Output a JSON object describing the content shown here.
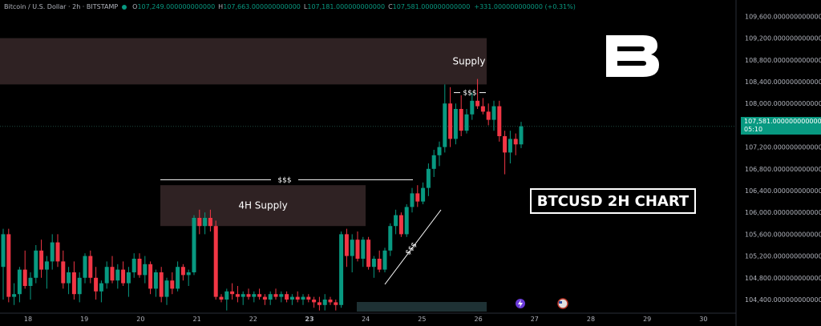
{
  "header": {
    "symbol": "Bitcoin / U.S. Dollar · 2h · BITSTAMP",
    "o_label": "O",
    "o_value": "107,249.000000000000",
    "h_label": "H",
    "h_value": "107,663.000000000000",
    "l_label": "L",
    "l_value": "107,181.000000000000",
    "c_label": "C",
    "c_value": "107,581.000000000000",
    "change": "+331.000000000000 (+0.31%)"
  },
  "price_tag": {
    "price": "107,581.000000000000",
    "countdown": "05:10"
  },
  "title_box": "BTCUSD 2H CHART",
  "colors": {
    "up": "#089981",
    "down": "#f23645",
    "supply_zone": "#2f2223",
    "bg": "#000000",
    "axis_text": "#b2b5be"
  },
  "chart_data": {
    "type": "candlestick",
    "timeframe": "2h",
    "x_ticks": [
      "18",
      "19",
      "20",
      "21",
      "22",
      "23",
      "24",
      "25",
      "26",
      "27",
      "28",
      "29",
      "30"
    ],
    "y_ticks": [
      "104,400.000000000000",
      "104,800.000000000000",
      "105,200.000000000000",
      "105,600.000000000000",
      "106,000.000000000000",
      "106,400.000000000000",
      "106,800.000000000000",
      "107,200.000000000000",
      "107,600.000000000000",
      "108,000.000000000000",
      "108,400.000000000000",
      "108,800.000000000000",
      "109,200.000000000000",
      "109,600.000000000000"
    ],
    "ylim": [
      104150,
      109900
    ],
    "current_price": 107581,
    "zones": [
      {
        "label": "Supply",
        "low": 108350,
        "high": 109200
      },
      {
        "label": "4H Supply",
        "low": 105750,
        "high": 106500
      }
    ],
    "annotations": [
      {
        "label": "$$$",
        "kind": "liquidity_line",
        "price": 106600
      },
      {
        "label": "$$$",
        "kind": "liquidity_line",
        "price": 108200
      },
      {
        "label": "$$$",
        "kind": "trendline_liquidity"
      }
    ],
    "candles": [
      {
        "o": 105000,
        "h": 105700,
        "l": 104400,
        "c": 105600
      },
      {
        "o": 105600,
        "h": 105700,
        "l": 104350,
        "c": 104450
      },
      {
        "o": 104450,
        "h": 104700,
        "l": 104300,
        "c": 104500
      },
      {
        "o": 104500,
        "h": 105000,
        "l": 104350,
        "c": 104950
      },
      {
        "o": 104950,
        "h": 105300,
        "l": 104600,
        "c": 104650
      },
      {
        "o": 104650,
        "h": 104900,
        "l": 104400,
        "c": 104800
      },
      {
        "o": 104800,
        "h": 105400,
        "l": 104700,
        "c": 105300
      },
      {
        "o": 105300,
        "h": 105500,
        "l": 104800,
        "c": 104950
      },
      {
        "o": 104950,
        "h": 105200,
        "l": 104600,
        "c": 105100
      },
      {
        "o": 105100,
        "h": 105600,
        "l": 104950,
        "c": 105450
      },
      {
        "o": 105450,
        "h": 105600,
        "l": 105000,
        "c": 105100
      },
      {
        "o": 105100,
        "h": 105300,
        "l": 104600,
        "c": 104700
      },
      {
        "o": 104700,
        "h": 105000,
        "l": 104500,
        "c": 104900
      },
      {
        "o": 104900,
        "h": 105100,
        "l": 104400,
        "c": 104500
      },
      {
        "o": 104500,
        "h": 104900,
        "l": 104350,
        "c": 104800
      },
      {
        "o": 104800,
        "h": 105250,
        "l": 104700,
        "c": 105200
      },
      {
        "o": 105200,
        "h": 105300,
        "l": 104700,
        "c": 104800
      },
      {
        "o": 104800,
        "h": 105000,
        "l": 104400,
        "c": 104550
      },
      {
        "o": 104550,
        "h": 104750,
        "l": 104350,
        "c": 104700
      },
      {
        "o": 104700,
        "h": 105100,
        "l": 104600,
        "c": 105000
      },
      {
        "o": 105000,
        "h": 105200,
        "l": 104700,
        "c": 104750
      },
      {
        "o": 104750,
        "h": 105050,
        "l": 104600,
        "c": 104950
      },
      {
        "o": 104950,
        "h": 105100,
        "l": 104650,
        "c": 104700
      },
      {
        "o": 104700,
        "h": 105000,
        "l": 104450,
        "c": 104900
      },
      {
        "o": 104900,
        "h": 105250,
        "l": 104800,
        "c": 105150
      },
      {
        "o": 105150,
        "h": 105250,
        "l": 104800,
        "c": 104850
      },
      {
        "o": 104850,
        "h": 105200,
        "l": 104700,
        "c": 105050
      },
      {
        "o": 105050,
        "h": 105100,
        "l": 104500,
        "c": 104600
      },
      {
        "o": 104600,
        "h": 104950,
        "l": 104450,
        "c": 104900
      },
      {
        "o": 104900,
        "h": 105000,
        "l": 104350,
        "c": 104450
      },
      {
        "o": 104450,
        "h": 104800,
        "l": 104300,
        "c": 104750
      },
      {
        "o": 104750,
        "h": 104900,
        "l": 104500,
        "c": 104600
      },
      {
        "o": 104600,
        "h": 105100,
        "l": 104550,
        "c": 105000
      },
      {
        "o": 105000,
        "h": 105050,
        "l": 104750,
        "c": 104850
      },
      {
        "o": 104850,
        "h": 104950,
        "l": 104650,
        "c": 104900
      },
      {
        "o": 104900,
        "h": 105950,
        "l": 104850,
        "c": 105900
      },
      {
        "o": 105900,
        "h": 106050,
        "l": 105600,
        "c": 105750
      },
      {
        "o": 105750,
        "h": 106000,
        "l": 105600,
        "c": 105900
      },
      {
        "o": 105900,
        "h": 106050,
        "l": 105650,
        "c": 105750
      },
      {
        "o": 105750,
        "h": 105850,
        "l": 104400,
        "c": 104450
      },
      {
        "o": 104450,
        "h": 104500,
        "l": 104350,
        "c": 104400
      },
      {
        "o": 104400,
        "h": 104600,
        "l": 104200,
        "c": 104550
      },
      {
        "o": 104550,
        "h": 104700,
        "l": 104400,
        "c": 104500
      },
      {
        "o": 104500,
        "h": 104650,
        "l": 104350,
        "c": 104450
      },
      {
        "o": 104450,
        "h": 104550,
        "l": 104300,
        "c": 104500
      },
      {
        "o": 104500,
        "h": 104600,
        "l": 104400,
        "c": 104450
      },
      {
        "o": 104450,
        "h": 104550,
        "l": 104350,
        "c": 104500
      },
      {
        "o": 104500,
        "h": 104600,
        "l": 104400,
        "c": 104450
      },
      {
        "o": 104450,
        "h": 104500,
        "l": 104300,
        "c": 104400
      },
      {
        "o": 104400,
        "h": 104550,
        "l": 104300,
        "c": 104500
      },
      {
        "o": 104500,
        "h": 104600,
        "l": 104400,
        "c": 104450
      },
      {
        "o": 104450,
        "h": 104550,
        "l": 104350,
        "c": 104500
      },
      {
        "o": 104500,
        "h": 104550,
        "l": 104350,
        "c": 104400
      },
      {
        "o": 104400,
        "h": 104500,
        "l": 104300,
        "c": 104450
      },
      {
        "o": 104450,
        "h": 104550,
        "l": 104350,
        "c": 104400
      },
      {
        "o": 104400,
        "h": 104500,
        "l": 104300,
        "c": 104450
      },
      {
        "o": 104450,
        "h": 104500,
        "l": 104350,
        "c": 104400
      },
      {
        "o": 104400,
        "h": 104450,
        "l": 104250,
        "c": 104350
      },
      {
        "o": 104350,
        "h": 104450,
        "l": 104200,
        "c": 104300
      },
      {
        "o": 104300,
        "h": 104500,
        "l": 104200,
        "c": 104400
      },
      {
        "o": 104400,
        "h": 104450,
        "l": 104300,
        "c": 104350
      },
      {
        "o": 104350,
        "h": 104400,
        "l": 104200,
        "c": 104300
      },
      {
        "o": 104300,
        "h": 105650,
        "l": 104250,
        "c": 105600
      },
      {
        "o": 105600,
        "h": 105700,
        "l": 105000,
        "c": 105200
      },
      {
        "o": 105200,
        "h": 105600,
        "l": 104900,
        "c": 105500
      },
      {
        "o": 105500,
        "h": 105650,
        "l": 105100,
        "c": 105150
      },
      {
        "o": 105150,
        "h": 105550,
        "l": 105000,
        "c": 105500
      },
      {
        "o": 105500,
        "h": 105550,
        "l": 104950,
        "c": 105000
      },
      {
        "o": 105000,
        "h": 105200,
        "l": 104800,
        "c": 105150
      },
      {
        "o": 105150,
        "h": 105300,
        "l": 104900,
        "c": 104950
      },
      {
        "o": 104950,
        "h": 105350,
        "l": 104900,
        "c": 105300
      },
      {
        "o": 105300,
        "h": 105800,
        "l": 105200,
        "c": 105750
      },
      {
        "o": 105750,
        "h": 106050,
        "l": 105600,
        "c": 105950
      },
      {
        "o": 105950,
        "h": 106000,
        "l": 105550,
        "c": 105600
      },
      {
        "o": 105600,
        "h": 106150,
        "l": 105550,
        "c": 106100
      },
      {
        "o": 106100,
        "h": 106450,
        "l": 106000,
        "c": 106350
      },
      {
        "o": 106350,
        "h": 106500,
        "l": 106100,
        "c": 106200
      },
      {
        "o": 106200,
        "h": 106550,
        "l": 106150,
        "c": 106450
      },
      {
        "o": 106450,
        "h": 106900,
        "l": 106300,
        "c": 106800
      },
      {
        "o": 106800,
        "h": 107150,
        "l": 106650,
        "c": 107050
      },
      {
        "o": 107050,
        "h": 107300,
        "l": 106850,
        "c": 107200
      },
      {
        "o": 107200,
        "h": 108350,
        "l": 107100,
        "c": 108000
      },
      {
        "o": 108000,
        "h": 108300,
        "l": 107200,
        "c": 107350
      },
      {
        "o": 107350,
        "h": 108000,
        "l": 107250,
        "c": 107900
      },
      {
        "o": 107900,
        "h": 108150,
        "l": 107400,
        "c": 107500
      },
      {
        "o": 107500,
        "h": 107900,
        "l": 107450,
        "c": 107800
      },
      {
        "o": 107800,
        "h": 108200,
        "l": 107700,
        "c": 108050
      },
      {
        "o": 108050,
        "h": 108450,
        "l": 107900,
        "c": 107950
      },
      {
        "o": 107950,
        "h": 108100,
        "l": 107800,
        "c": 107850
      },
      {
        "o": 107850,
        "h": 108000,
        "l": 107600,
        "c": 107700
      },
      {
        "o": 107700,
        "h": 108050,
        "l": 107500,
        "c": 107950
      },
      {
        "o": 107950,
        "h": 108050,
        "l": 107300,
        "c": 107400
      },
      {
        "o": 107400,
        "h": 107500,
        "l": 106700,
        "c": 107100
      },
      {
        "o": 107100,
        "h": 107500,
        "l": 106900,
        "c": 107350
      },
      {
        "o": 107350,
        "h": 107450,
        "l": 107050,
        "c": 107249
      },
      {
        "o": 107249,
        "h": 107663,
        "l": 107181,
        "c": 107581
      }
    ]
  }
}
